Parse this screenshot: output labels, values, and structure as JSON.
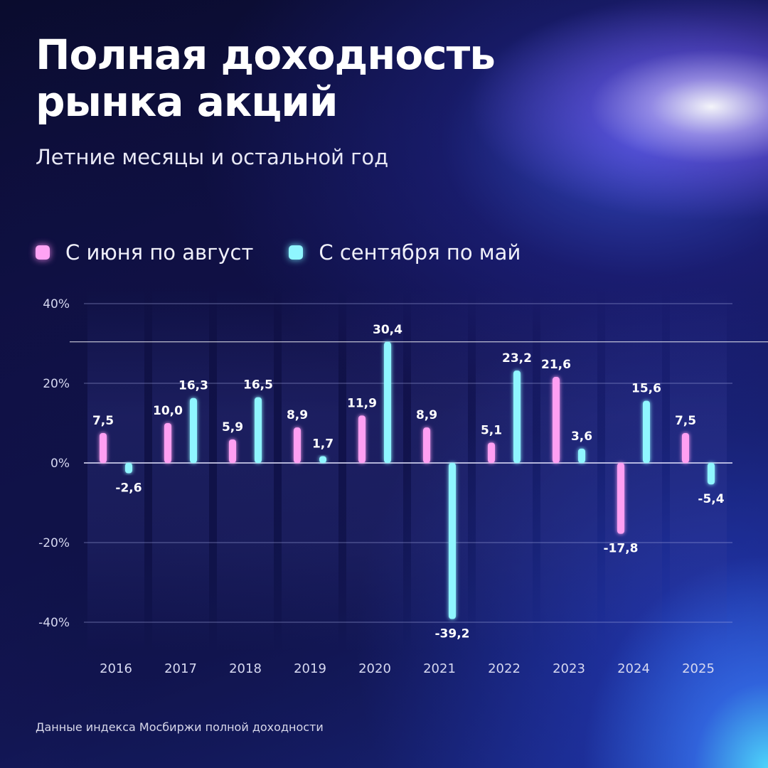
{
  "header": {
    "title_line1": "Полная доходность",
    "title_line2": "рынка акций",
    "subtitle": "Летние месяцы и остальной год"
  },
  "legend": {
    "summer": "С июня по август",
    "rest": "С сентября по май"
  },
  "footer": {
    "source": "Данные индекса Мосбиржи полной доходности"
  },
  "colors": {
    "summer": "#ff9ff2",
    "rest": "#8ff6ff"
  },
  "chart_data": {
    "type": "bar",
    "title": "Полная доходность рынка акций",
    "subtitle": "Летние месяцы и остальной год",
    "categories": [
      "2016",
      "2017",
      "2018",
      "2019",
      "2020",
      "2021",
      "2022",
      "2023",
      "2024",
      "2025"
    ],
    "series": [
      {
        "name": "С июня по август",
        "values": [
          7.5,
          10.0,
          5.9,
          8.9,
          11.9,
          8.9,
          5.1,
          21.6,
          -17.8,
          7.5
        ],
        "labels": [
          "7,5",
          "10,0",
          "5,9",
          "8,9",
          "11,9",
          "8,9",
          "5,1",
          "21,6",
          "-17,8",
          "7,5"
        ]
      },
      {
        "name": "С сентября по май",
        "values": [
          -2.6,
          16.3,
          16.5,
          1.7,
          30.4,
          -39.2,
          23.2,
          3.6,
          15.6,
          -5.4
        ],
        "labels": [
          "-2,6",
          "16,3",
          "16,5",
          "1,7",
          "30,4",
          "-39,2",
          "23,2",
          "3,6",
          "15,6",
          "-5,4"
        ]
      }
    ],
    "yticks": [
      40,
      20,
      0,
      -20,
      -40
    ],
    "ytick_labels": [
      "40%",
      "20%",
      "0%",
      "-20%",
      "-40%"
    ],
    "ylim": [
      -40,
      40
    ],
    "grid": true,
    "legend_position": "top-left",
    "reference_line": 30.4
  }
}
